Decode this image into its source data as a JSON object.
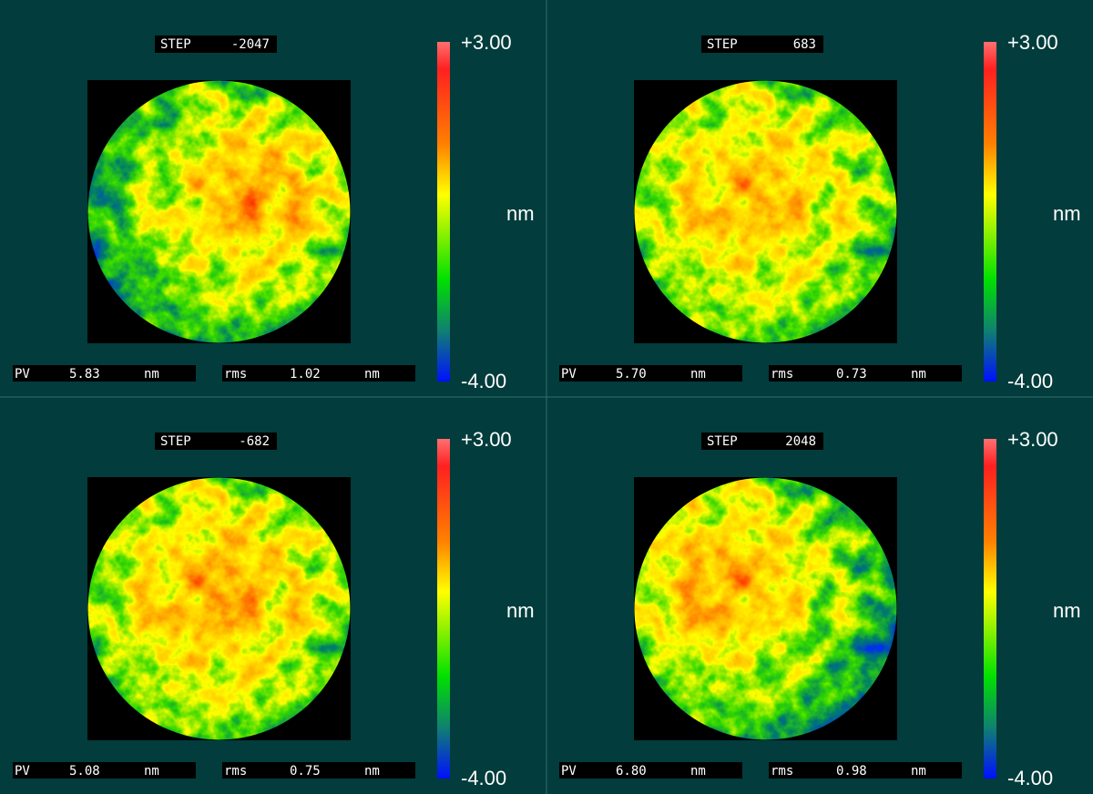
{
  "panels": [
    {
      "step_label": "STEP",
      "step": "-2047",
      "scale_max": "+3.00",
      "scale_min": "-4.00",
      "scale_unit": "nm",
      "pv_label": "PV",
      "pv": "5.83",
      "pv_unit": "nm",
      "rms_label": "rms",
      "rms": "1.02",
      "rms_unit": "nm"
    },
    {
      "step_label": "STEP",
      "step": "683",
      "scale_max": "+3.00",
      "scale_min": "-4.00",
      "scale_unit": "nm",
      "pv_label": "PV",
      "pv": "5.70",
      "pv_unit": "nm",
      "rms_label": "rms",
      "rms": "0.73",
      "rms_unit": "nm"
    },
    {
      "step_label": "STEP",
      "step": "-682",
      "scale_max": "+3.00",
      "scale_min": "-4.00",
      "scale_unit": "nm",
      "pv_label": "PV",
      "pv": "5.08",
      "pv_unit": "nm",
      "rms_label": "rms",
      "rms": "0.75",
      "rms_unit": "nm"
    },
    {
      "step_label": "STEP",
      "step": "2048",
      "scale_max": "+3.00",
      "scale_min": "-4.00",
      "scale_unit": "nm",
      "pv_label": "PV",
      "pv": "6.80",
      "pv_unit": "nm",
      "rms_label": "rms",
      "rms": "0.98",
      "rms_unit": "nm"
    }
  ]
}
